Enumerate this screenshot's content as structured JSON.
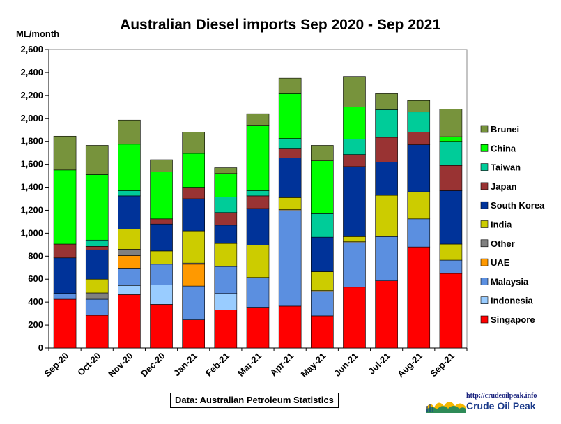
{
  "chart_data": {
    "type": "bar",
    "stacked": true,
    "title": "Australian Diesel imports Sep 2020 - Sep 2021",
    "ylabel": "ML/month",
    "ylim": [
      0,
      2600
    ],
    "yticks": [
      "0",
      "200",
      "400",
      "600",
      "800",
      "1,000",
      "1,200",
      "1,400",
      "1,600",
      "1,800",
      "2,000",
      "2,200",
      "2,400",
      "2,600"
    ],
    "ytick_values": [
      0,
      200,
      400,
      600,
      800,
      1000,
      1200,
      1400,
      1600,
      1800,
      2000,
      2200,
      2400,
      2600
    ],
    "categories": [
      "Sep-20",
      "Oct-20",
      "Nov-20",
      "Dec-20",
      "Jan-21",
      "Feb-21",
      "Mar-21",
      "Apr-21",
      "May-21",
      "Jun-21",
      "Jul-21",
      "Aug-21",
      "Sep-21"
    ],
    "legend_position": "right",
    "series": [
      {
        "name": "Singapore",
        "color": "#ff0000",
        "values": [
          425,
          285,
          465,
          380,
          245,
          330,
          355,
          365,
          280,
          530,
          585,
          880,
          650
        ]
      },
      {
        "name": "Indonesia",
        "color": "#99ccff",
        "values": [
          0,
          0,
          80,
          170,
          0,
          145,
          0,
          0,
          0,
          0,
          0,
          0,
          0
        ]
      },
      {
        "name": "Malaysia",
        "color": "#5b8fe0",
        "values": [
          50,
          140,
          145,
          180,
          295,
          235,
          260,
          830,
          210,
          385,
          385,
          245,
          115
        ]
      },
      {
        "name": "UAE",
        "color": "#ff9900",
        "values": [
          0,
          0,
          115,
          0,
          190,
          0,
          0,
          0,
          0,
          0,
          0,
          0,
          0
        ]
      },
      {
        "name": "Other",
        "color": "#808080",
        "values": [
          0,
          55,
          55,
          0,
          10,
          0,
          0,
          10,
          10,
          10,
          0,
          0,
          0
        ]
      },
      {
        "name": "India",
        "color": "#cccc00",
        "values": [
          0,
          120,
          175,
          115,
          280,
          200,
          280,
          105,
          165,
          45,
          360,
          235,
          140
        ]
      },
      {
        "name": "South Korea",
        "color": "#003399",
        "values": [
          310,
          255,
          290,
          235,
          280,
          160,
          320,
          345,
          300,
          610,
          290,
          410,
          465
        ]
      },
      {
        "name": "Japan",
        "color": "#993333",
        "values": [
          120,
          30,
          0,
          45,
          100,
          110,
          110,
          85,
          0,
          105,
          215,
          110,
          220
        ]
      },
      {
        "name": "Taiwan",
        "color": "#00cc99",
        "values": [
          0,
          55,
          45,
          0,
          0,
          135,
          45,
          85,
          205,
          135,
          240,
          175,
          210
        ]
      },
      {
        "name": "China",
        "color": "#00ff00",
        "values": [
          645,
          570,
          405,
          410,
          295,
          205,
          570,
          390,
          460,
          280,
          0,
          0,
          40
        ]
      },
      {
        "name": "Brunei",
        "color": "#77933c",
        "values": [
          295,
          255,
          210,
          105,
          185,
          50,
          100,
          135,
          135,
          265,
          140,
          100,
          240
        ]
      }
    ],
    "grid": false,
    "source_note": "Data: Australian Petroleum Statistics"
  },
  "credit": {
    "url": "http://crudeoilpeak.info",
    "name": "Crude Oil Peak"
  }
}
